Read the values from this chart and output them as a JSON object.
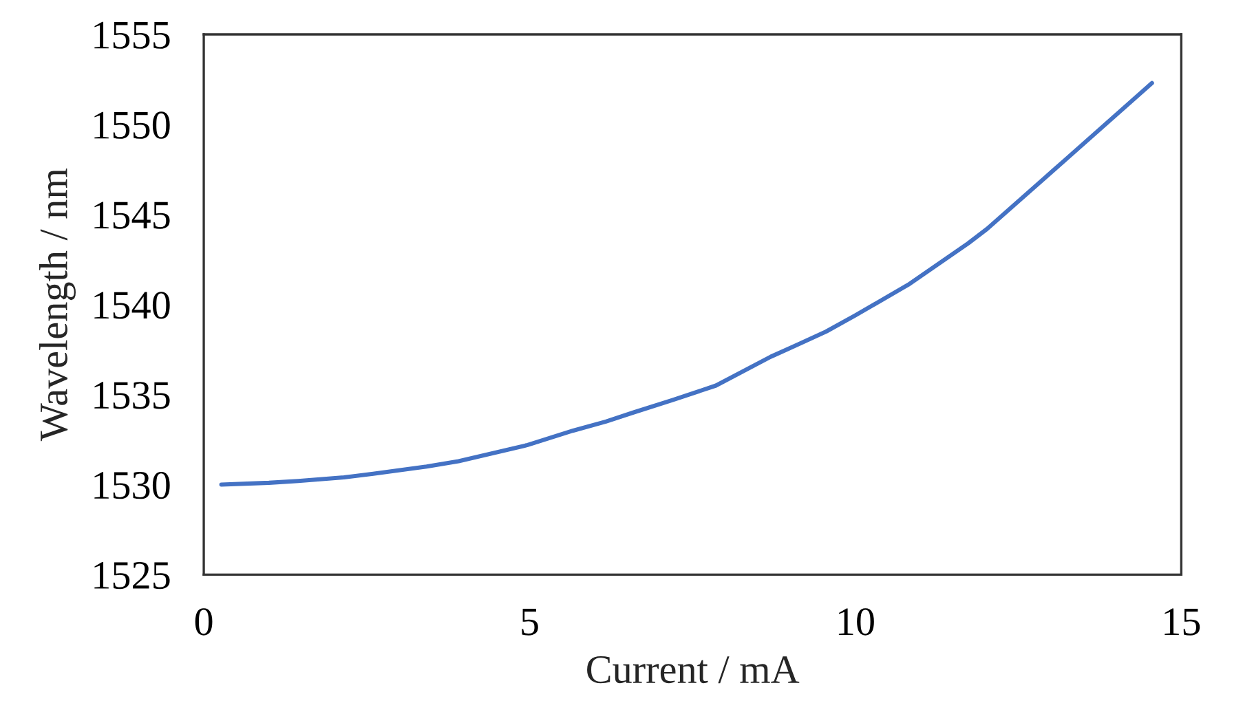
{
  "chart_data": {
    "type": "line",
    "xlabel": "Current / mA",
    "ylabel": "Wavelength / nm",
    "xlim": [
      0,
      15
    ],
    "ylim": [
      1525,
      1555
    ],
    "xticks": [
      0,
      5,
      10,
      15
    ],
    "yticks": [
      1525,
      1530,
      1535,
      1540,
      1545,
      1550,
      1555
    ],
    "grid": false,
    "x": [
      0.27,
      1.0,
      1.45,
      2.15,
      2.6,
      3.42,
      3.91,
      4.97,
      5.67,
      6.17,
      6.59,
      7.2,
      7.86,
      8.7,
      9.13,
      9.55,
      10.0,
      10.81,
      11.73,
      12.02,
      13.21,
      14.55
    ],
    "series": [
      {
        "color": "#4472c4",
        "values": [
          1530.0,
          1530.1,
          1530.2,
          1530.4,
          1530.6,
          1531.0,
          1531.3,
          1532.2,
          1533.0,
          1533.5,
          1534.0,
          1534.7,
          1535.5,
          1537.1,
          1537.8,
          1538.5,
          1539.4,
          1541.1,
          1543.4,
          1544.2,
          1548.0,
          1552.3
        ]
      }
    ]
  }
}
